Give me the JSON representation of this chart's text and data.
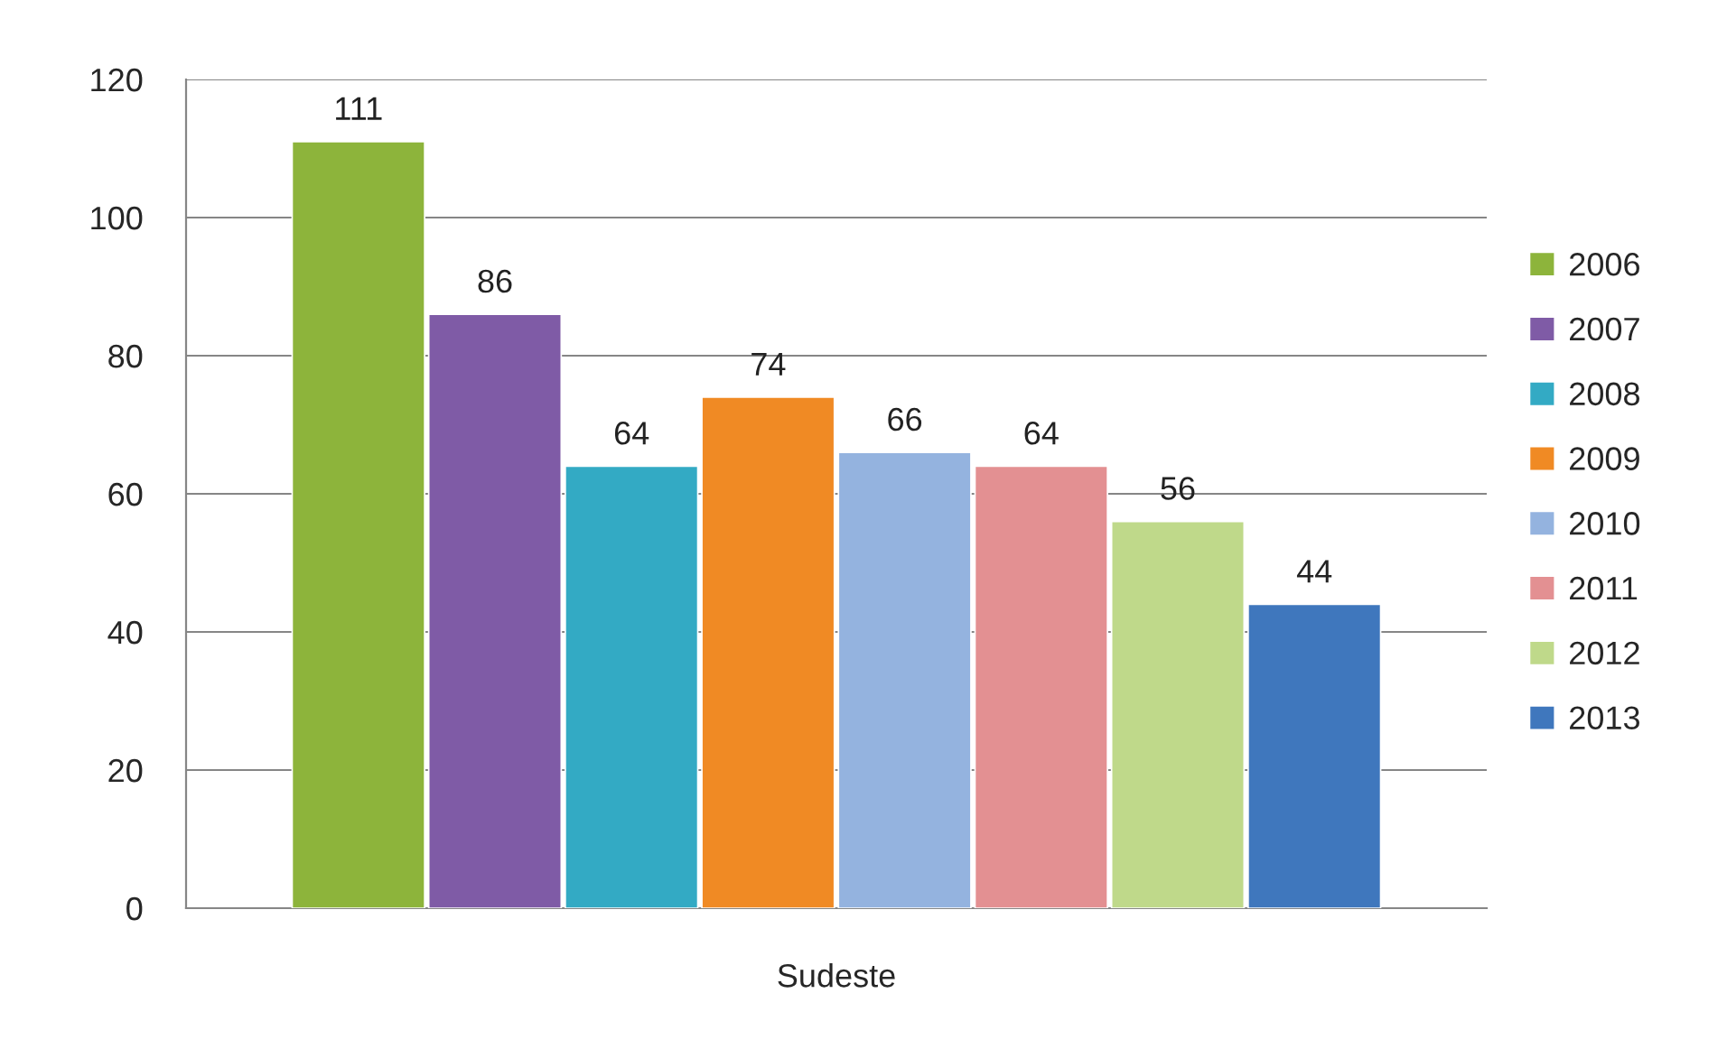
{
  "chart_data": {
    "type": "bar",
    "categories": [
      "Sudeste"
    ],
    "series": [
      {
        "name": "2006",
        "color": "#8db43b",
        "values": [
          111
        ]
      },
      {
        "name": "2007",
        "color": "#7f5ba6",
        "values": [
          86
        ]
      },
      {
        "name": "2008",
        "color": "#33aac4",
        "values": [
          64
        ]
      },
      {
        "name": "2009",
        "color": "#f08a24",
        "values": [
          74
        ]
      },
      {
        "name": "2010",
        "color": "#94b3df",
        "values": [
          66
        ]
      },
      {
        "name": "2011",
        "color": "#e39092",
        "values": [
          64
        ]
      },
      {
        "name": "2012",
        "color": "#bfd98a",
        "values": [
          56
        ]
      },
      {
        "name": "2013",
        "color": "#3f77bd",
        "values": [
          44
        ]
      }
    ],
    "ylim": [
      0,
      120
    ],
    "yticks": [
      0,
      20,
      40,
      60,
      80,
      100,
      120
    ],
    "grid": "y",
    "legend": "right",
    "data_labels": true
  }
}
